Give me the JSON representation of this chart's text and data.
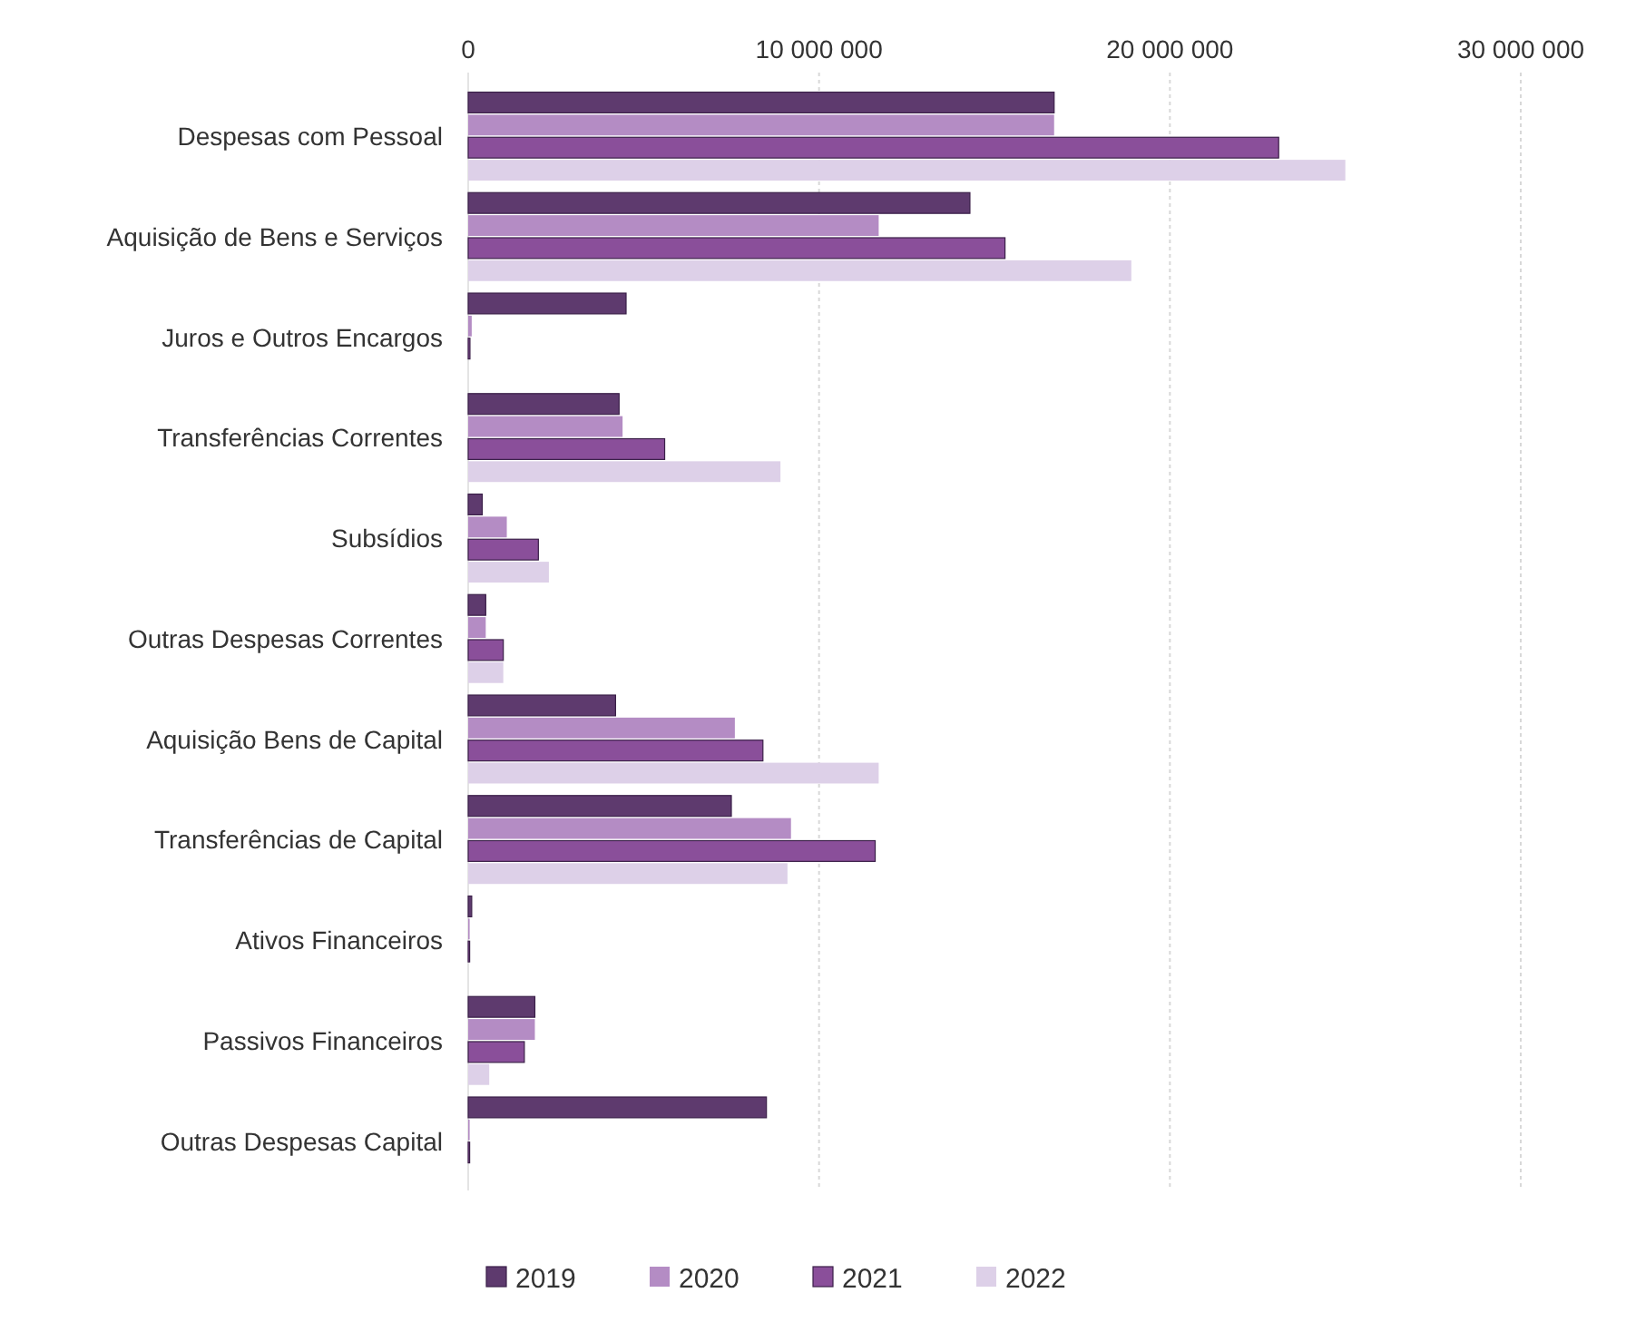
{
  "chart_data": {
    "type": "bar",
    "orientation": "horizontal",
    "categories": [
      "Despesas com Pessoal",
      "Aquisição de Bens e Serviços",
      "Juros e Outros Encargos",
      "Transferências Correntes",
      "Subsídios",
      "Outras Despesas Correntes",
      "Aquisição Bens de Capital",
      "Transferências de Capital",
      "Ativos Financeiros",
      "Passivos Financeiros",
      "Outras Despesas Capital"
    ],
    "series": [
      {
        "name": "2019",
        "color": "#5e3a6e",
        "values": [
          16700000,
          14300000,
          4500000,
          4300000,
          400000,
          500000,
          4200000,
          7500000,
          100000,
          1900000,
          8500000
        ]
      },
      {
        "name": "2020",
        "color": "#b48cc4",
        "values": [
          16700000,
          11700000,
          100000,
          4400000,
          1100000,
          500000,
          7600000,
          9200000,
          0,
          1900000,
          0
        ]
      },
      {
        "name": "2021",
        "color": "#8a4f9a",
        "values": [
          23100000,
          15300000,
          50000,
          5600000,
          2000000,
          1000000,
          8400000,
          11600000,
          0,
          1600000,
          0
        ]
      },
      {
        "name": "2022",
        "color": "#ddd0e8",
        "values": [
          25000000,
          18900000,
          null,
          8900000,
          2300000,
          1000000,
          11700000,
          9100000,
          null,
          600000,
          null
        ]
      }
    ],
    "xlim": [
      0,
      30000000
    ],
    "xticks": [
      0,
      {
        "value": 10000000,
        "label": "10 000 000"
      },
      {
        "value": 20000000,
        "label": "20 000 000"
      },
      {
        "value": 30000000,
        "label": "30 000 000"
      }
    ],
    "grid": "x",
    "legend": "bottom"
  }
}
